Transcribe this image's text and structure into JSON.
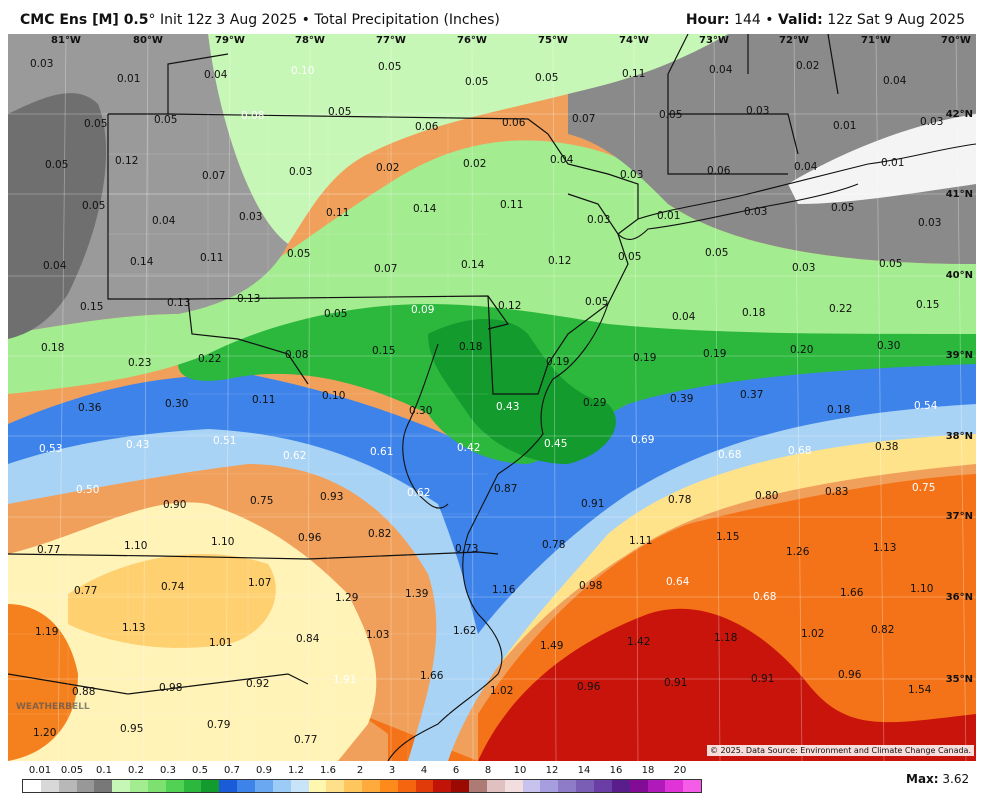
{
  "header": {
    "model": "CMC Ens [M] 0.5",
    "degree": "°",
    "init": "Init 12z 3 Aug 2025",
    "bullet": "•",
    "product": "Total Precipitation (Inches)",
    "hour_label": "Hour:",
    "hour_value": "144",
    "valid_label": "Valid:",
    "valid_value": "12z Sat 9 Aug 2025"
  },
  "map": {
    "lon_labels": [
      "81°W",
      "80°W",
      "79°W",
      "78°W",
      "77°W",
      "76°W",
      "75°W",
      "74°W",
      "73°W",
      "72°W",
      "71°W",
      "70°W"
    ],
    "lat_labels": [
      "42°N",
      "41°N",
      "40°N",
      "39°N",
      "38°N",
      "37°N",
      "36°N",
      "35°N"
    ],
    "values": [
      {
        "t": "0.03",
        "c": "d"
      },
      {
        "t": "0.01",
        "c": "d"
      },
      {
        "t": "0.04",
        "c": "d"
      },
      {
        "t": "0.10",
        "c": "w"
      },
      {
        "t": "0.05",
        "c": "d"
      },
      {
        "t": "0.05",
        "c": "d"
      },
      {
        "t": "0.05",
        "c": "d"
      },
      {
        "t": "0.11",
        "c": "d"
      },
      {
        "t": "0.04",
        "c": "d"
      },
      {
        "t": "0.02",
        "c": "d"
      },
      {
        "t": "0.04",
        "c": "d"
      },
      {
        "t": "0.05",
        "c": "d"
      },
      {
        "t": "0.05",
        "c": "d"
      },
      {
        "t": "0.08",
        "c": "w"
      },
      {
        "t": "0.05",
        "c": "d"
      },
      {
        "t": "0.06",
        "c": "d"
      },
      {
        "t": "0.06",
        "c": "d"
      },
      {
        "t": "0.07",
        "c": "d"
      },
      {
        "t": "0.05",
        "c": "d"
      },
      {
        "t": "0.03",
        "c": "d"
      },
      {
        "t": "0.01",
        "c": "d"
      },
      {
        "t": "0.03",
        "c": "d"
      },
      {
        "t": "0.05",
        "c": "d"
      },
      {
        "t": "0.12",
        "c": "d"
      },
      {
        "t": "0.07",
        "c": "d"
      },
      {
        "t": "0.03",
        "c": "d"
      },
      {
        "t": "0.02",
        "c": "d"
      },
      {
        "t": "0.02",
        "c": "d"
      },
      {
        "t": "0.04",
        "c": "d"
      },
      {
        "t": "0.03",
        "c": "d"
      },
      {
        "t": "0.06",
        "c": "d"
      },
      {
        "t": "0.04",
        "c": "d"
      },
      {
        "t": "0.01",
        "c": "d"
      },
      {
        "t": "0.05",
        "c": "d"
      },
      {
        "t": "0.04",
        "c": "d"
      },
      {
        "t": "0.03",
        "c": "d"
      },
      {
        "t": "0.11",
        "c": "d"
      },
      {
        "t": "0.14",
        "c": "d"
      },
      {
        "t": "0.11",
        "c": "d"
      },
      {
        "t": "0.03",
        "c": "d"
      },
      {
        "t": "0.01",
        "c": "d"
      },
      {
        "t": "0.03",
        "c": "d"
      },
      {
        "t": "0.05",
        "c": "d"
      },
      {
        "t": "0.03",
        "c": "d"
      },
      {
        "t": "0.04",
        "c": "d"
      },
      {
        "t": "0.14",
        "c": "d"
      },
      {
        "t": "0.11",
        "c": "d"
      },
      {
        "t": "0.05",
        "c": "d"
      },
      {
        "t": "0.07",
        "c": "d"
      },
      {
        "t": "0.14",
        "c": "d"
      },
      {
        "t": "0.12",
        "c": "d"
      },
      {
        "t": "0.05",
        "c": "d"
      },
      {
        "t": "0.05",
        "c": "d"
      },
      {
        "t": "0.03",
        "c": "d"
      },
      {
        "t": "0.05",
        "c": "d"
      },
      {
        "t": "0.15",
        "c": "d"
      },
      {
        "t": "0.13",
        "c": "d"
      },
      {
        "t": "0.13",
        "c": "d"
      },
      {
        "t": "0.05",
        "c": "d"
      },
      {
        "t": "0.09",
        "c": "w"
      },
      {
        "t": "0.12",
        "c": "d"
      },
      {
        "t": "0.05",
        "c": "d"
      },
      {
        "t": "0.04",
        "c": "d"
      },
      {
        "t": "0.18",
        "c": "d"
      },
      {
        "t": "0.22",
        "c": "d"
      },
      {
        "t": "0.15",
        "c": "d"
      },
      {
        "t": "0.18",
        "c": "d"
      },
      {
        "t": "0.23",
        "c": "d"
      },
      {
        "t": "0.22",
        "c": "d"
      },
      {
        "t": "0.08",
        "c": "d"
      },
      {
        "t": "0.15",
        "c": "d"
      },
      {
        "t": "0.18",
        "c": "d"
      },
      {
        "t": "0.19",
        "c": "d"
      },
      {
        "t": "0.19",
        "c": "d"
      },
      {
        "t": "0.19",
        "c": "d"
      },
      {
        "t": "0.20",
        "c": "d"
      },
      {
        "t": "0.30",
        "c": "d"
      },
      {
        "t": "0.36",
        "c": "d"
      },
      {
        "t": "0.30",
        "c": "d"
      },
      {
        "t": "0.11",
        "c": "d"
      },
      {
        "t": "0.10",
        "c": "d"
      },
      {
        "t": "0.30",
        "c": "d"
      },
      {
        "t": "0.43",
        "c": "w"
      },
      {
        "t": "0.29",
        "c": "d"
      },
      {
        "t": "0.39",
        "c": "d"
      },
      {
        "t": "0.37",
        "c": "d"
      },
      {
        "t": "0.18",
        "c": "d"
      },
      {
        "t": "0.54",
        "c": "w"
      },
      {
        "t": "0.53",
        "c": "w"
      },
      {
        "t": "0.43",
        "c": "w"
      },
      {
        "t": "0.51",
        "c": "w"
      },
      {
        "t": "0.62",
        "c": "w"
      },
      {
        "t": "0.61",
        "c": "w"
      },
      {
        "t": "0.42",
        "c": "w"
      },
      {
        "t": "0.45",
        "c": "w"
      },
      {
        "t": "0.69",
        "c": "w"
      },
      {
        "t": "0.68",
        "c": "w"
      },
      {
        "t": "0.68",
        "c": "w"
      },
      {
        "t": "0.38",
        "c": "d"
      },
      {
        "t": "0.50",
        "c": "w"
      },
      {
        "t": "0.90",
        "c": "d"
      },
      {
        "t": "0.75",
        "c": "d"
      },
      {
        "t": "0.93",
        "c": "d"
      },
      {
        "t": "0.62",
        "c": "w"
      },
      {
        "t": "0.87",
        "c": "d"
      },
      {
        "t": "0.91",
        "c": "d"
      },
      {
        "t": "0.78",
        "c": "d"
      },
      {
        "t": "0.80",
        "c": "d"
      },
      {
        "t": "0.83",
        "c": "d"
      },
      {
        "t": "0.75",
        "c": "w"
      },
      {
        "t": "0.77",
        "c": "d"
      },
      {
        "t": "1.10",
        "c": "d"
      },
      {
        "t": "1.10",
        "c": "d"
      },
      {
        "t": "0.96",
        "c": "d"
      },
      {
        "t": "0.82",
        "c": "d"
      },
      {
        "t": "0.73",
        "c": "d"
      },
      {
        "t": "0.78",
        "c": "d"
      },
      {
        "t": "1.11",
        "c": "d"
      },
      {
        "t": "1.15",
        "c": "d"
      },
      {
        "t": "1.26",
        "c": "d"
      },
      {
        "t": "1.13",
        "c": "d"
      },
      {
        "t": "0.77",
        "c": "d"
      },
      {
        "t": "0.74",
        "c": "d"
      },
      {
        "t": "1.07",
        "c": "d"
      },
      {
        "t": "1.29",
        "c": "d"
      },
      {
        "t": "1.39",
        "c": "d"
      },
      {
        "t": "1.16",
        "c": "d"
      },
      {
        "t": "0.98",
        "c": "d"
      },
      {
        "t": "0.64",
        "c": "w"
      },
      {
        "t": "0.68",
        "c": "w"
      },
      {
        "t": "1.66",
        "c": "d"
      },
      {
        "t": "1.10",
        "c": "d"
      },
      {
        "t": "1.19",
        "c": "d"
      },
      {
        "t": "1.13",
        "c": "d"
      },
      {
        "t": "1.01",
        "c": "d"
      },
      {
        "t": "0.84",
        "c": "d"
      },
      {
        "t": "1.03",
        "c": "d"
      },
      {
        "t": "1.62",
        "c": "d"
      },
      {
        "t": "1.49",
        "c": "d"
      },
      {
        "t": "1.42",
        "c": "d"
      },
      {
        "t": "1.18",
        "c": "d"
      },
      {
        "t": "1.02",
        "c": "d"
      },
      {
        "t": "0.82",
        "c": "d"
      },
      {
        "t": "0.88",
        "c": "d"
      },
      {
        "t": "0.98",
        "c": "d"
      },
      {
        "t": "0.92",
        "c": "d"
      },
      {
        "t": "1.91",
        "c": "w"
      },
      {
        "t": "1.66",
        "c": "d"
      },
      {
        "t": "1.02",
        "c": "d"
      },
      {
        "t": "0.96",
        "c": "d"
      },
      {
        "t": "0.91",
        "c": "d"
      },
      {
        "t": "0.91",
        "c": "d"
      },
      {
        "t": "0.96",
        "c": "d"
      },
      {
        "t": "1.54",
        "c": "d"
      },
      {
        "t": "1.20",
        "c": "d"
      },
      {
        "t": "0.95",
        "c": "d"
      },
      {
        "t": "0.79",
        "c": "d"
      },
      {
        "t": "0.77",
        "c": "d"
      }
    ],
    "copyright": "© 2025. Data Source: Environment and Climate Change Canada.",
    "watermark": "WEATHERBELL"
  },
  "legend": {
    "labels": [
      "0.01",
      "0.05",
      "0.1",
      "0.2",
      "0.3",
      "0.5",
      "0.7",
      "0.9",
      "1.2",
      "1.6",
      "2",
      "3",
      "4",
      "6",
      "8",
      "10",
      "12",
      "14",
      "16",
      "18",
      "20"
    ],
    "colors": [
      "#ffffff",
      "#d8d8d8",
      "#b8b8b8",
      "#989898",
      "#787878",
      "#c7f7b6",
      "#a3ec8f",
      "#7de172",
      "#52d254",
      "#2cb83d",
      "#139b2d",
      "#1a5bd7",
      "#3d83ea",
      "#6aa8f2",
      "#9dcbf7",
      "#c7e4f9",
      "#fff6b0",
      "#ffe08a",
      "#ffc65e",
      "#ffaa3c",
      "#ff8a1c",
      "#f5640e",
      "#e03b08",
      "#c11406",
      "#9a0a03",
      "#ac7b73",
      "#e0c0c0",
      "#f2dede",
      "#c8c3ee",
      "#a79ee0",
      "#8e7cc9",
      "#7a5eb5",
      "#6a3ea4",
      "#5a1d8c",
      "#820c96",
      "#b01aba",
      "#e033d8",
      "#f55de8"
    ],
    "max_label": "Max:",
    "max_value": "3.62"
  }
}
